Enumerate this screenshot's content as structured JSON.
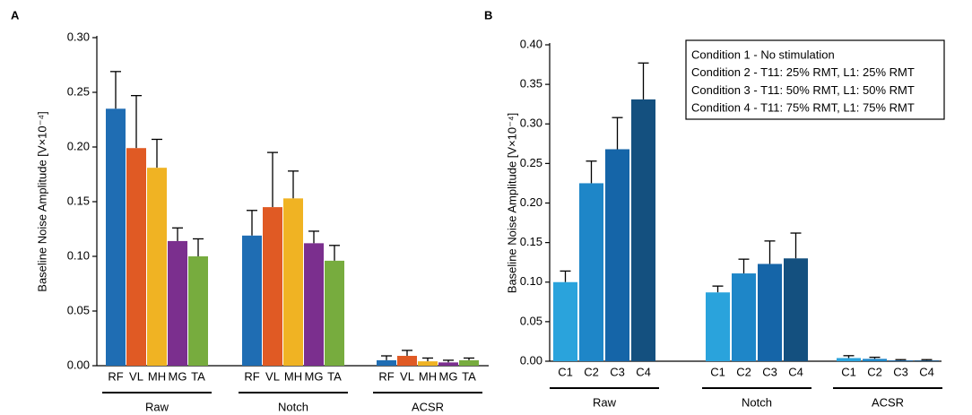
{
  "chart_data": [
    {
      "type": "bar",
      "panel": "A",
      "ylabel": "Baseline Noise Amplitude [V×10⁻⁴]",
      "categories": [
        "Raw",
        "Notch",
        "ACSR"
      ],
      "series": [
        {
          "name": "RF",
          "color": "#1f6db3",
          "values": [
            0.235,
            0.119,
            0.005
          ],
          "errors": [
            0.034,
            0.023,
            0.004
          ]
        },
        {
          "name": "VL",
          "color": "#e05a24",
          "values": [
            0.199,
            0.145,
            0.009
          ],
          "errors": [
            0.048,
            0.05,
            0.005
          ]
        },
        {
          "name": "MH",
          "color": "#f0b323",
          "values": [
            0.181,
            0.153,
            0.004
          ],
          "errors": [
            0.026,
            0.025,
            0.003
          ]
        },
        {
          "name": "MG",
          "color": "#7b2f8e",
          "values": [
            0.114,
            0.112,
            0.003
          ],
          "errors": [
            0.012,
            0.011,
            0.002
          ]
        },
        {
          "name": "TA",
          "color": "#77ac3e",
          "values": [
            0.1,
            0.096,
            0.005
          ],
          "errors": [
            0.016,
            0.014,
            0.002
          ]
        }
      ],
      "ylim": [
        0,
        0.3
      ],
      "yticks": [
        {
          "value": 0,
          "label": "0.00"
        },
        {
          "value": 0.05,
          "label": "0.05"
        },
        {
          "value": 0.1,
          "label": "0.10"
        },
        {
          "value": 0.15,
          "label": "0.15"
        },
        {
          "value": 0.2,
          "label": "0.20"
        },
        {
          "value": 0.25,
          "label": "0.25"
        },
        {
          "value": 0.3,
          "label": "0.30"
        }
      ]
    },
    {
      "type": "bar",
      "panel": "B",
      "ylabel": "Baseline Noise Amplitude [V×10⁻⁴]",
      "categories": [
        "Raw",
        "Notch",
        "ACSR"
      ],
      "series": [
        {
          "name": "C1",
          "color": "#2aa3dc",
          "values": [
            0.1,
            0.087,
            0.004
          ],
          "errors": [
            0.014,
            0.008,
            0.003
          ]
        },
        {
          "name": "C2",
          "color": "#1e86c8",
          "values": [
            0.225,
            0.111,
            0.003
          ],
          "errors": [
            0.028,
            0.018,
            0.002
          ]
        },
        {
          "name": "C3",
          "color": "#1565a8",
          "values": [
            0.268,
            0.123,
            0.001
          ],
          "errors": [
            0.04,
            0.029,
            0.001
          ]
        },
        {
          "name": "C4",
          "color": "#14507f",
          "values": [
            0.331,
            0.13,
            0.001
          ],
          "errors": [
            0.046,
            0.032,
            0.001
          ]
        }
      ],
      "legend": [
        "Condition 1 -  No stimulation",
        "Condition 2 - T11: 25% RMT, L1: 25% RMT",
        "Condition 3 - T11: 50% RMT, L1: 50% RMT",
        "Condition 4 - T11: 75% RMT, L1: 75% RMT"
      ],
      "ylim": [
        0,
        0.4
      ],
      "yticks": [
        {
          "value": 0,
          "label": "0.00"
        },
        {
          "value": 0.05,
          "label": "0.05"
        },
        {
          "value": 0.1,
          "label": "0.10"
        },
        {
          "value": 0.15,
          "label": "0.15"
        },
        {
          "value": 0.2,
          "label": "0.20"
        },
        {
          "value": 0.25,
          "label": "0.25"
        },
        {
          "value": 0.3,
          "label": "0.30"
        },
        {
          "value": 0.35,
          "label": "0.35"
        },
        {
          "value": 0.4,
          "label": "0.40"
        }
      ]
    }
  ]
}
